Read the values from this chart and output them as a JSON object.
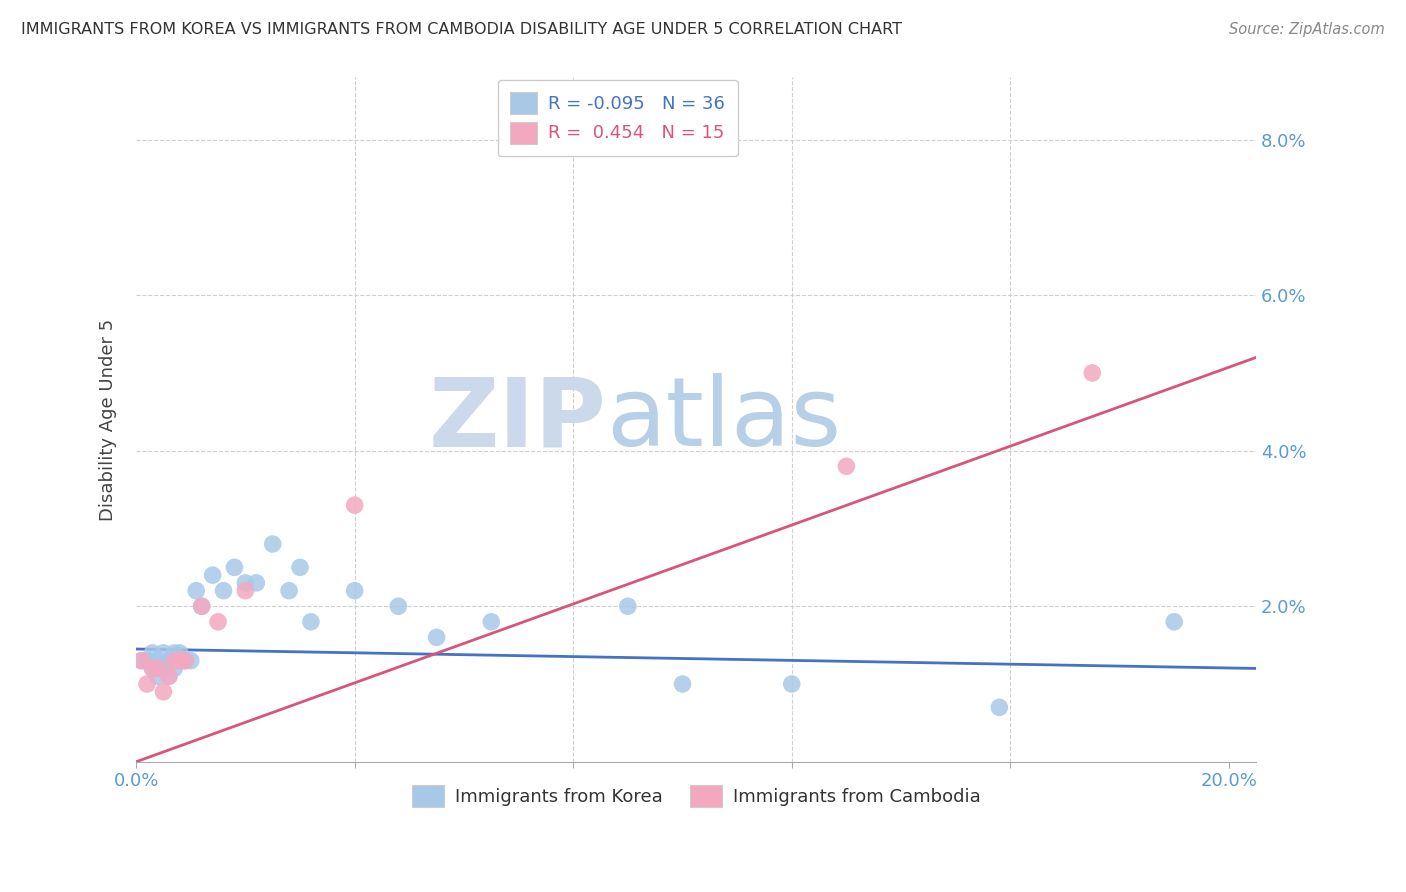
{
  "title": "IMMIGRANTS FROM KOREA VS IMMIGRANTS FROM CAMBODIA DISABILITY AGE UNDER 5 CORRELATION CHART",
  "source": "Source: ZipAtlas.com",
  "ylabel": "Disability Age Under 5",
  "xlim": [
    0.0,
    0.205
  ],
  "ylim": [
    0.0,
    0.088
  ],
  "xtick_positions": [
    0.0,
    0.04,
    0.08,
    0.12,
    0.16,
    0.2
  ],
  "xtick_labels": [
    "0.0%",
    "",
    "",
    "",
    "",
    "20.0%"
  ],
  "ytick_positions": [
    0.0,
    0.02,
    0.04,
    0.06,
    0.08
  ],
  "ytick_labels_right": [
    "",
    "2.0%",
    "4.0%",
    "6.0%",
    "8.0%"
  ],
  "korea_color": "#a8c8e8",
  "cambodia_color": "#f4a8c0",
  "korea_line_color": "#4472c4",
  "cambodia_line_color": "#d9547a",
  "legend_korea_label": "R = -0.095   N = 36",
  "legend_cambodia_label": "R =  0.454   N = 15",
  "korea_x": [
    0.001,
    0.002,
    0.003,
    0.003,
    0.004,
    0.004,
    0.005,
    0.005,
    0.006,
    0.006,
    0.007,
    0.007,
    0.008,
    0.008,
    0.009,
    0.01,
    0.011,
    0.012,
    0.014,
    0.016,
    0.018,
    0.02,
    0.022,
    0.025,
    0.028,
    0.03,
    0.032,
    0.04,
    0.048,
    0.055,
    0.065,
    0.09,
    0.1,
    0.12,
    0.158,
    0.19
  ],
  "korea_y": [
    0.013,
    0.013,
    0.014,
    0.012,
    0.013,
    0.011,
    0.014,
    0.012,
    0.013,
    0.011,
    0.014,
    0.012,
    0.014,
    0.013,
    0.013,
    0.013,
    0.022,
    0.02,
    0.024,
    0.022,
    0.025,
    0.023,
    0.023,
    0.028,
    0.022,
    0.025,
    0.018,
    0.022,
    0.02,
    0.016,
    0.018,
    0.02,
    0.01,
    0.01,
    0.007,
    0.018
  ],
  "cambodia_x": [
    0.001,
    0.002,
    0.003,
    0.004,
    0.005,
    0.006,
    0.007,
    0.008,
    0.009,
    0.012,
    0.015,
    0.02,
    0.04,
    0.13,
    0.175
  ],
  "cambodia_y": [
    0.013,
    0.01,
    0.012,
    0.012,
    0.009,
    0.011,
    0.013,
    0.013,
    0.013,
    0.02,
    0.018,
    0.022,
    0.033,
    0.038,
    0.05
  ]
}
